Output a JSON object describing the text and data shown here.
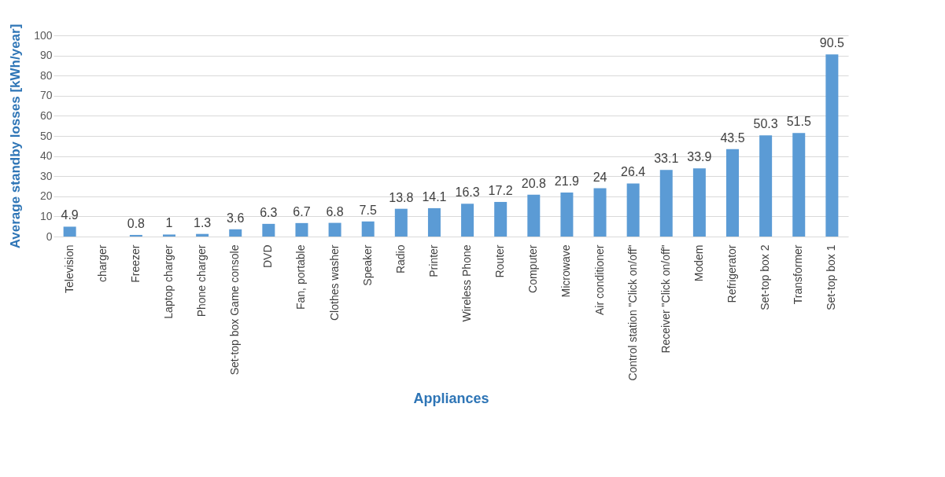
{
  "chart_data": {
    "type": "bar",
    "xlabel": "Appliances",
    "ylabel": "Average standby losses [kWh/year]",
    "categories": [
      "Television",
      "charger",
      "Freezer",
      "Laptop charger",
      "Phone charger",
      "Set-top box Game console",
      "DVD",
      "Fan, portable",
      "Clothes washer",
      "Speaker",
      "Radio",
      "Printer",
      "Wireless Phone",
      "Router",
      "Computer",
      "Microwave",
      "Air conditioner",
      "Control station \"Click on/off\"",
      "Receiver \"Click on/off\"",
      "Modem",
      "Refrigerator",
      "Set-top box 2",
      "Transformer",
      "Set-top box 1"
    ],
    "values": [
      4.9,
      0,
      0.8,
      1,
      1.3,
      3.6,
      6.3,
      6.7,
      6.8,
      7.5,
      13.8,
      14.1,
      16.3,
      17.2,
      20.8,
      21.9,
      24,
      26.4,
      33.1,
      33.9,
      43.5,
      50.3,
      51.5,
      90.5
    ],
    "value_labels": [
      "4.9",
      null,
      "0.8",
      "1",
      "1.3",
      "3.6",
      "6.3",
      "6.7",
      "6.8",
      "7.5",
      "13.8",
      "14.1",
      "16.3",
      "17.2",
      "20.8",
      "21.9",
      "24",
      "26.4",
      "33.1",
      "33.9",
      "43.5",
      "50.3",
      "51.5",
      "90.5"
    ],
    "color": "#5b9bd5",
    "ylim": [
      0,
      100
    ],
    "yticks": [
      0,
      10,
      20,
      30,
      40,
      50,
      60,
      70,
      80,
      90,
      100
    ],
    "grid": "y"
  }
}
